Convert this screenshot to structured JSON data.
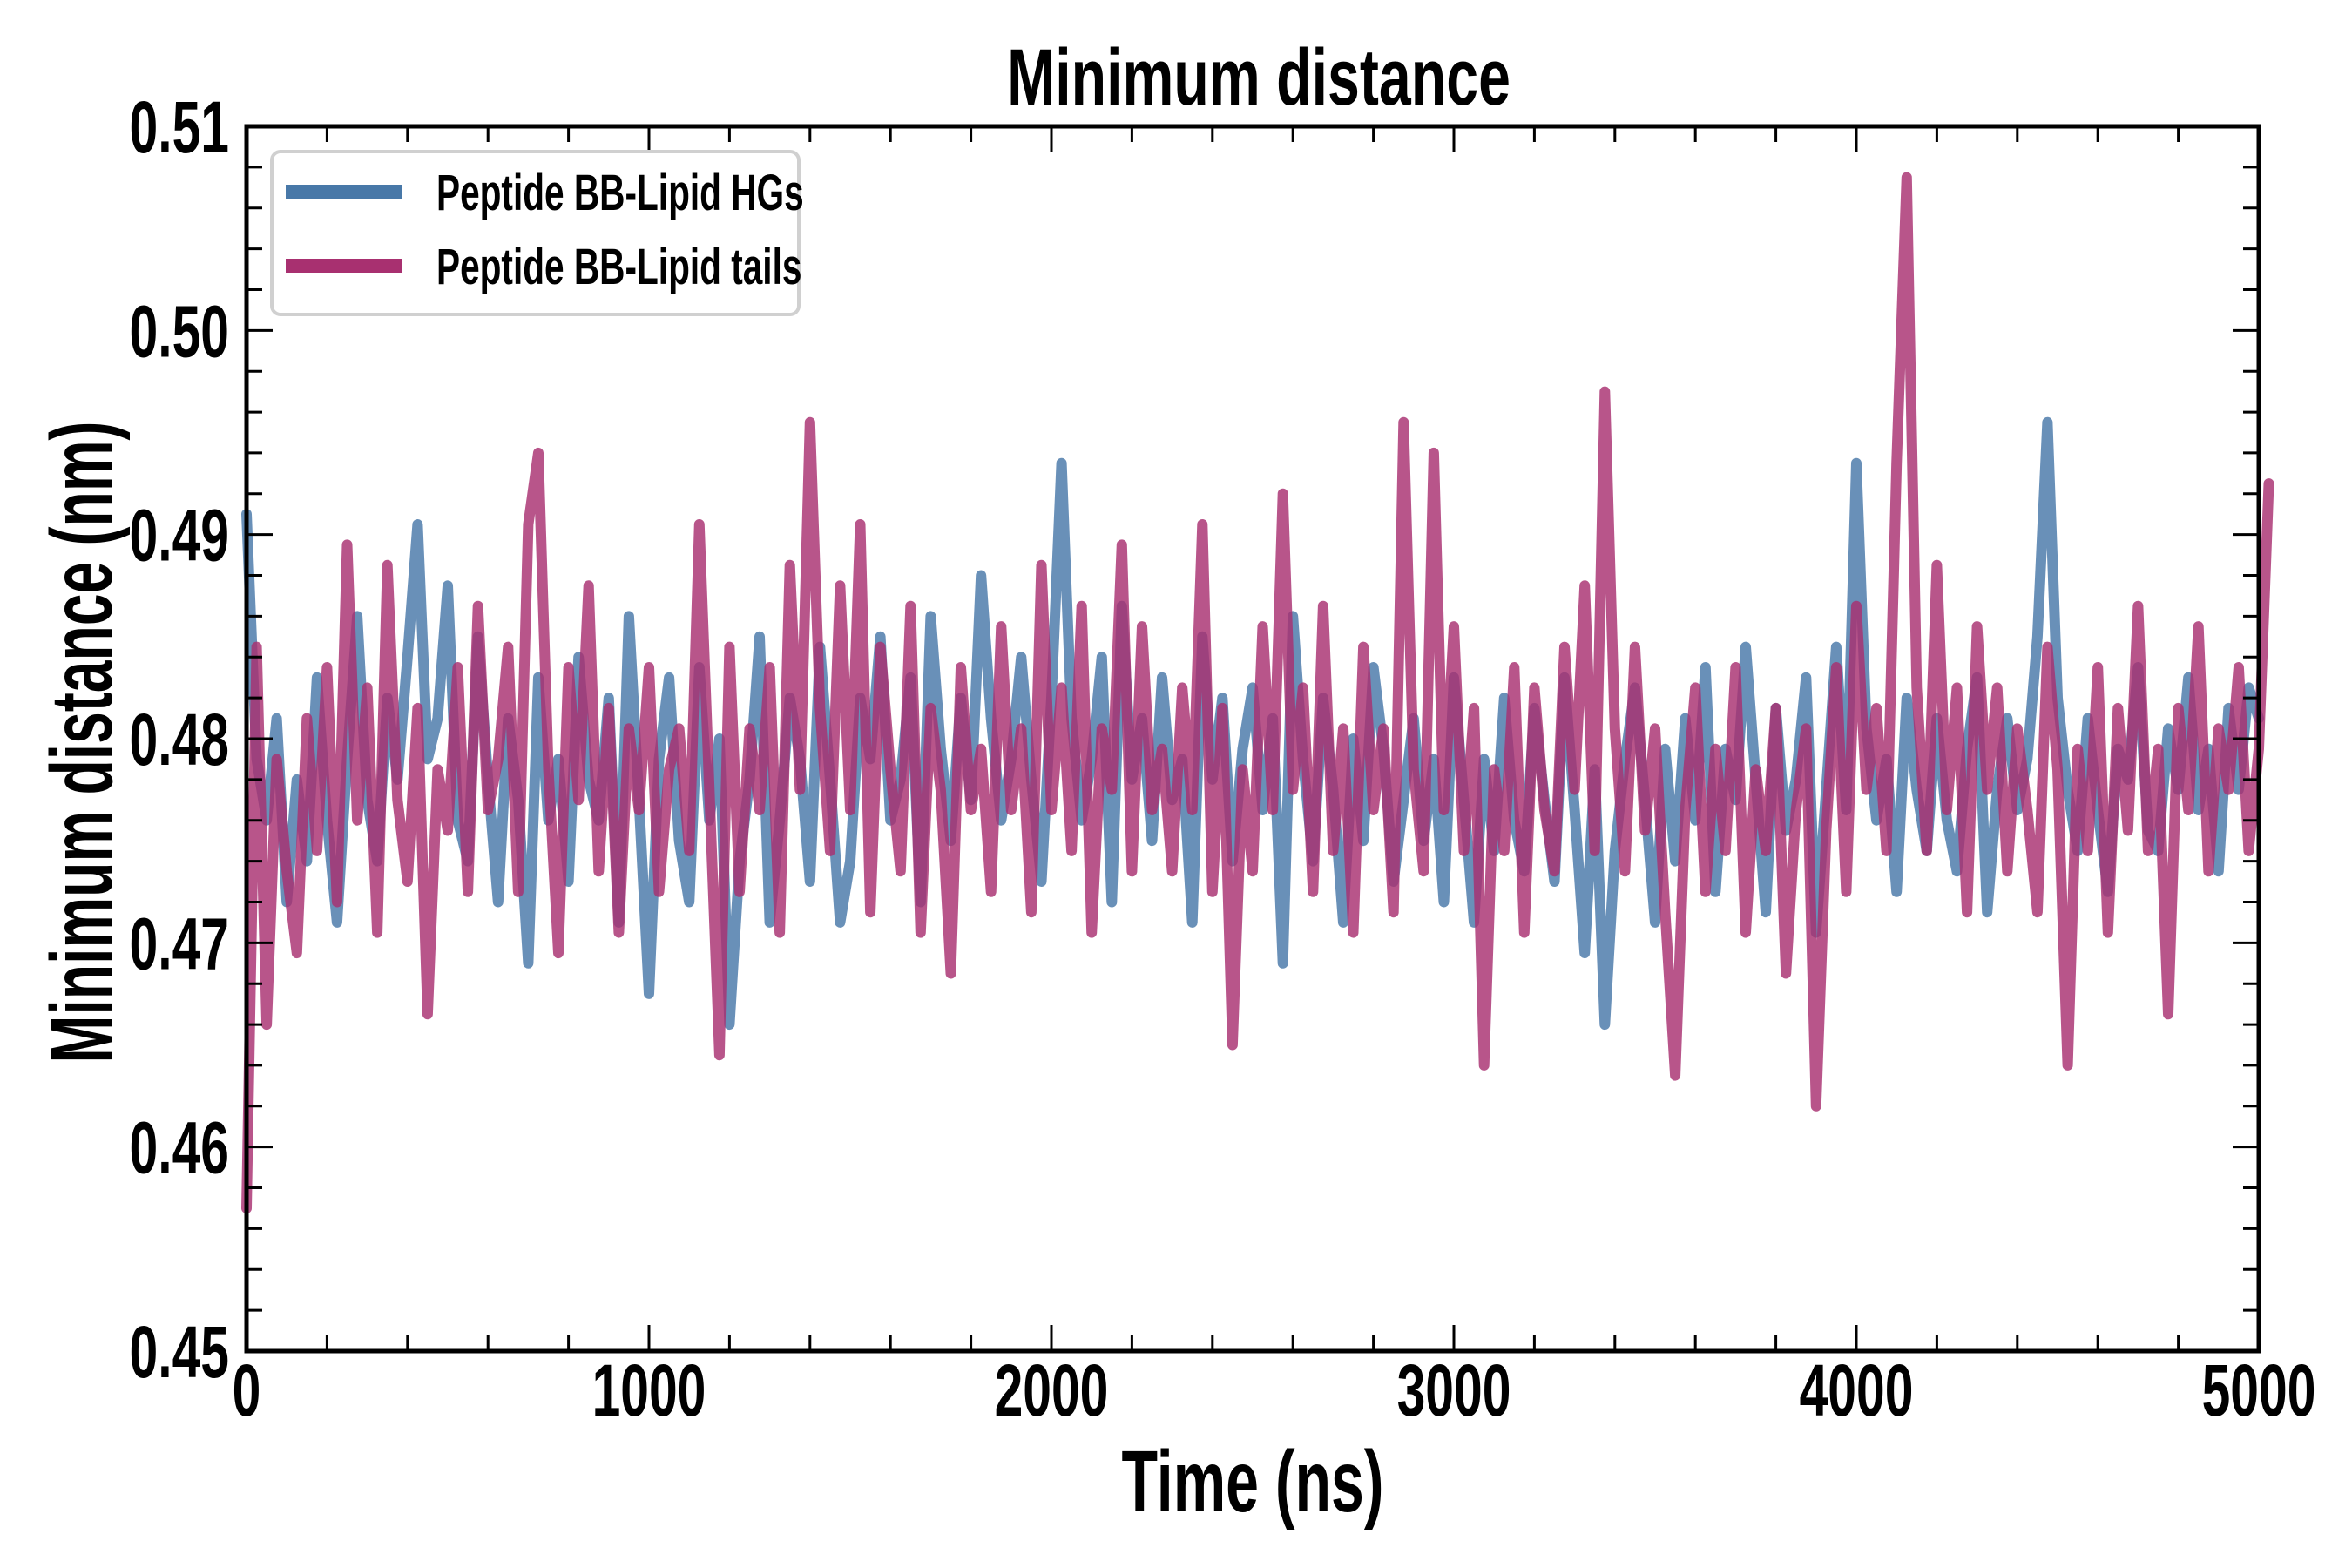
{
  "chart_data": {
    "type": "line",
    "title": "Minimum distance",
    "xlabel": "Time (ns)",
    "ylabel": "Minimum distance (nm)",
    "xlim": [
      0,
      5000
    ],
    "ylim": [
      0.45,
      0.51
    ],
    "x_ticks": [
      0,
      1000,
      2000,
      3000,
      4000,
      5000
    ],
    "x_tick_labels": [
      "0",
      "1000",
      "2000",
      "3000",
      "4000",
      "5000"
    ],
    "x_minor_step": 200,
    "y_ticks": [
      0.45,
      0.46,
      0.47,
      0.48,
      0.49,
      0.5,
      0.51
    ],
    "y_tick_labels": [
      "0.45",
      "0.46",
      "0.47",
      "0.48",
      "0.49",
      "0.50",
      "0.51"
    ],
    "y_minor_step": 0.002,
    "grid": false,
    "legend_position": "top-left",
    "x_step": 25,
    "series": [
      {
        "name": "Peptide BB-Lipid HGs",
        "color": "#4878a8",
        "values": [
          0.491,
          0.479,
          0.476,
          0.481,
          0.472,
          0.478,
          0.474,
          0.483,
          0.476,
          0.471,
          0.479,
          0.486,
          0.477,
          0.474,
          0.482,
          0.478,
          0.484,
          0.4905,
          0.479,
          0.481,
          0.4875,
          0.476,
          0.474,
          0.485,
          0.478,
          0.472,
          0.481,
          0.477,
          0.469,
          0.483,
          0.476,
          0.479,
          0.473,
          0.484,
          0.478,
          0.476,
          0.482,
          0.471,
          0.486,
          0.477,
          0.4675,
          0.479,
          0.483,
          0.475,
          0.472,
          0.4835,
          0.476,
          0.48,
          0.466,
          0.474,
          0.478,
          0.485,
          0.471,
          0.476,
          0.482,
          0.479,
          0.473,
          0.4845,
          0.478,
          0.471,
          0.474,
          0.482,
          0.479,
          0.485,
          0.476,
          0.478,
          0.483,
          0.472,
          0.486,
          0.4795,
          0.475,
          0.482,
          0.477,
          0.488,
          0.481,
          0.476,
          0.479,
          0.484,
          0.478,
          0.473,
          0.482,
          0.4935,
          0.481,
          0.476,
          0.479,
          0.484,
          0.472,
          0.4865,
          0.478,
          0.481,
          0.475,
          0.483,
          0.477,
          0.479,
          0.471,
          0.485,
          0.478,
          0.482,
          0.474,
          0.4795,
          0.4825,
          0.4765,
          0.481,
          0.469,
          0.486,
          0.479,
          0.474,
          0.482,
          0.4775,
          0.471,
          0.48,
          0.475,
          0.4835,
          0.4795,
          0.473,
          0.477,
          0.481,
          0.475,
          0.479,
          0.472,
          0.483,
          0.477,
          0.471,
          0.479,
          0.4745,
          0.482,
          0.476,
          0.4735,
          0.4815,
          0.477,
          0.473,
          0.483,
          0.4765,
          0.4695,
          0.4785,
          0.466,
          0.4745,
          0.479,
          0.4825,
          0.477,
          0.471,
          0.4795,
          0.474,
          0.481,
          0.476,
          0.4835,
          0.4725,
          0.4795,
          0.477,
          0.4845,
          0.478,
          0.4715,
          0.4815,
          0.4755,
          0.478,
          0.483,
          0.4705,
          0.4775,
          0.4845,
          0.4765,
          0.4935,
          0.4805,
          0.476,
          0.479,
          0.4725,
          0.482,
          0.4775,
          0.4745,
          0.481,
          0.476,
          0.4735,
          0.4795,
          0.483,
          0.4715,
          0.4775,
          0.481,
          0.4765,
          0.479,
          0.485,
          0.4955,
          0.482,
          0.4775,
          0.4745,
          0.481,
          0.4765,
          0.4725,
          0.4795,
          0.478,
          0.4835,
          0.4755,
          0.4745,
          0.4805,
          0.4775,
          0.483,
          0.4765,
          0.4795,
          0.4735,
          0.4815,
          0.4775,
          0.4825,
          0.481
        ]
      },
      {
        "name": "Peptide BB-Lipid tails",
        "color": "#a83070",
        "values": [
          0.457,
          0.4845,
          0.466,
          0.479,
          0.4735,
          0.4695,
          0.481,
          0.4745,
          0.4835,
          0.472,
          0.4895,
          0.476,
          0.4825,
          0.4705,
          0.4885,
          0.477,
          0.473,
          0.4815,
          0.4665,
          0.4785,
          0.4755,
          0.4835,
          0.4725,
          0.4865,
          0.4765,
          0.479,
          0.4845,
          0.4725,
          0.4905,
          0.494,
          0.4785,
          0.4695,
          0.4835,
          0.477,
          0.4875,
          0.4735,
          0.4815,
          0.4705,
          0.4805,
          0.4765,
          0.4835,
          0.4725,
          0.4785,
          0.4805,
          0.4745,
          0.4905,
          0.4775,
          0.4645,
          0.4845,
          0.4725,
          0.4805,
          0.4765,
          0.4835,
          0.4705,
          0.4885,
          0.4775,
          0.4955,
          0.4815,
          0.4745,
          0.4875,
          0.4765,
          0.4905,
          0.4715,
          0.4845,
          0.4785,
          0.4735,
          0.4865,
          0.4705,
          0.4815,
          0.4775,
          0.4685,
          0.4835,
          0.4765,
          0.4795,
          0.4725,
          0.4855,
          0.4765,
          0.4805,
          0.4715,
          0.4885,
          0.4765,
          0.4825,
          0.4745,
          0.4865,
          0.4705,
          0.4805,
          0.4775,
          0.4895,
          0.4735,
          0.4855,
          0.4765,
          0.4795,
          0.4735,
          0.4825,
          0.4765,
          0.4905,
          0.4725,
          0.4815,
          0.465,
          0.4785,
          0.4735,
          0.4855,
          0.4765,
          0.492,
          0.4775,
          0.4825,
          0.4725,
          0.4865,
          0.4745,
          0.4805,
          0.4705,
          0.4845,
          0.4765,
          0.4805,
          0.4715,
          0.4955,
          0.4785,
          0.4735,
          0.494,
          0.4765,
          0.4855,
          0.4745,
          0.4815,
          0.464,
          0.4785,
          0.4745,
          0.4835,
          0.4705,
          0.4825,
          0.4765,
          0.4735,
          0.4845,
          0.4775,
          0.4875,
          0.4745,
          0.497,
          0.4805,
          0.4735,
          0.4845,
          0.4755,
          0.4805,
          0.4715,
          0.4635,
          0.4765,
          0.4825,
          0.4725,
          0.4795,
          0.4745,
          0.4835,
          0.4705,
          0.4785,
          0.4745,
          0.4815,
          0.4685,
          0.4765,
          0.4805,
          0.462,
          0.4755,
          0.4835,
          0.4725,
          0.4865,
          0.4775,
          0.4815,
          0.4745,
          0.4935,
          0.5075,
          0.4825,
          0.4745,
          0.4885,
          0.4765,
          0.4825,
          0.4715,
          0.4855,
          0.4775,
          0.4825,
          0.4735,
          0.4805,
          0.4765,
          0.4715,
          0.4845,
          0.4785,
          0.464,
          0.4795,
          0.4745,
          0.4835,
          0.4705,
          0.4815,
          0.4755,
          0.4865,
          0.4745,
          0.4795,
          0.4665,
          0.4815,
          0.4765,
          0.4855,
          0.4735,
          0.4805,
          0.4775,
          0.4835,
          0.4745,
          0.4795,
          0.4925
        ]
      }
    ]
  },
  "legend": {
    "items": [
      {
        "label": "Peptide BB-Lipid HGs",
        "color": "#4878a8"
      },
      {
        "label": "Peptide BB-Lipid tails",
        "color": "#a83070"
      }
    ]
  }
}
